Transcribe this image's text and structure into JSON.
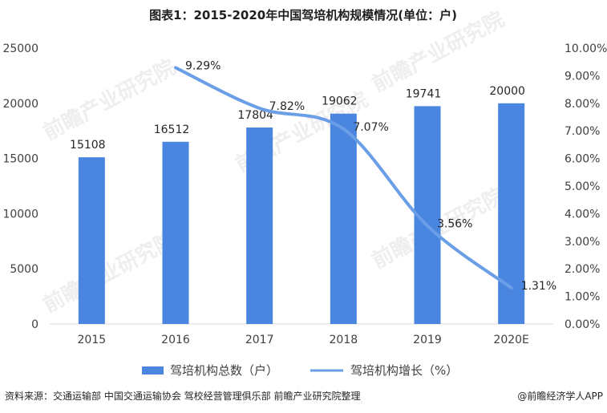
{
  "chart_data": {
    "type": "bar",
    "title": "图表1：2015-2020年中国驾培机构规模情况(单位：户)",
    "categories": [
      "2015",
      "2016",
      "2017",
      "2018",
      "2019",
      "2020E"
    ],
    "series": [
      {
        "name": "驾培机构总数（户）",
        "type": "bar",
        "axis": "left",
        "values": [
          15108,
          16512,
          17804,
          19062,
          19741,
          20000
        ],
        "labels": [
          "15108",
          "16512",
          "17804",
          "19062",
          "19741",
          "20000"
        ],
        "color": "#4a86e0"
      },
      {
        "name": "驾培机构增长（%）",
        "type": "line",
        "axis": "right",
        "values": [
          null,
          9.29,
          7.82,
          7.07,
          3.56,
          1.31
        ],
        "labels": [
          "",
          "9.29%",
          "7.82%",
          "7.07%",
          "3.56%",
          "1.31%"
        ],
        "color": "#6a9ee6"
      }
    ],
    "y_left": {
      "range": [
        0,
        25000
      ],
      "ticks": [
        "0",
        "5000",
        "10000",
        "15000",
        "20000",
        "25000"
      ]
    },
    "y_right": {
      "range": [
        0,
        10
      ],
      "ticks": [
        "0.00%",
        "1.00%",
        "2.00%",
        "3.00%",
        "4.00%",
        "5.00%",
        "6.00%",
        "7.00%",
        "8.00%",
        "9.00%",
        "10.00%"
      ]
    },
    "legend_position": "bottom"
  },
  "source_text": "资料来源：交通运输部 中国交通运输协会 驾校经营管理俱乐部 前瞻产业研究院整理",
  "credit_text": "@前瞻经济学人APP",
  "watermark_text": "前瞻产业研究院"
}
